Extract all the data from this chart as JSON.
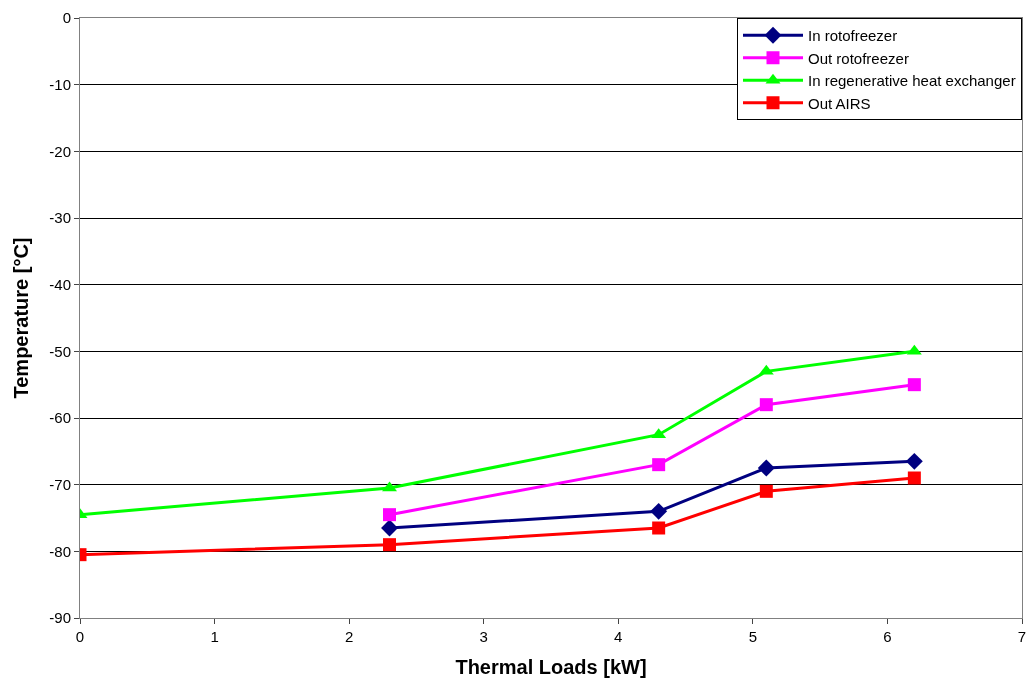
{
  "chart_data": {
    "type": "line",
    "xlabel": "Thermal Loads [kW]",
    "ylabel": "Temperature [°C]",
    "series": [
      {
        "name": "In rotofreezer",
        "color": "#000080",
        "marker": "diamond",
        "x": [
          2.3,
          4.3,
          5.1,
          6.2
        ],
        "values": [
          -76.5,
          -74,
          -67.5,
          -66.5
        ]
      },
      {
        "name": "Out rotofreezer",
        "color": "#ff00ff",
        "marker": "square",
        "x": [
          2.3,
          4.3,
          5.1,
          6.2
        ],
        "values": [
          -74.5,
          -67,
          -58,
          -55
        ]
      },
      {
        "name": "In regenerative heat exchanger",
        "color": "#00ff00",
        "marker": "triangle",
        "x": [
          0,
          2.3,
          4.3,
          5.1,
          6.2
        ],
        "values": [
          -74.5,
          -70.5,
          -62.5,
          -53,
          -50
        ]
      },
      {
        "name": "Out AIRS",
        "color": "#ff0000",
        "marker": "square",
        "x": [
          0,
          2.3,
          4.3,
          5.1,
          6.2
        ],
        "values": [
          -80.5,
          -79,
          -76.5,
          -71,
          -69
        ]
      }
    ],
    "xlim": [
      0,
      7
    ],
    "xticks": [
      0,
      1,
      2,
      3,
      4,
      5,
      6,
      7
    ],
    "ylim": [
      -90,
      0
    ],
    "yticks": [
      -90,
      -80,
      -70,
      -60,
      -50,
      -40,
      -30,
      -20,
      -10,
      0
    ],
    "grid": "y",
    "legend": "top right",
    "line_style": "solid"
  }
}
